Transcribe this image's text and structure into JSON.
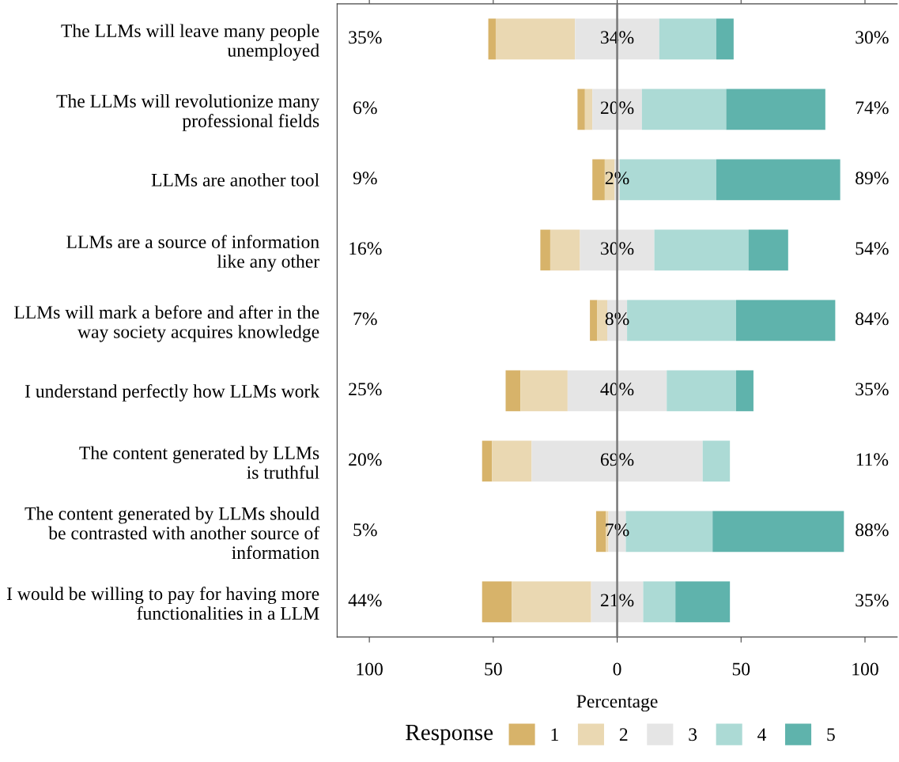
{
  "chart_data": {
    "type": "bar",
    "orientation": "horizontal",
    "xlabel": "Percentage",
    "legend_title": "Response",
    "legend": "bottom",
    "categories": [
      "The LLMs will leave many people\nunemployed",
      "The LLMs will revolutionize many\nprofessional fields",
      "LLMs are another tool",
      "LLMs are a source of information\nlike any other",
      "LLMs will mark a before and after in the\nway society acquires knowledge",
      "I understand perfectly how LLMs work",
      "The content generated by LLMs\nis truthful",
      "The content generated by LLMs should\nbe contrasted with another source of\ninformation",
      "I would be willing to pay for having more\nfunctionalities in a LLM"
    ],
    "series": [
      {
        "name": "1",
        "color": "#d7b36a",
        "values": [
          3,
          3,
          5,
          4,
          3,
          6,
          4,
          4,
          12
        ],
        "base": [
          -52,
          -16,
          -10,
          -31,
          -11,
          -45,
          -54.5,
          -8.5,
          -54.5
        ]
      },
      {
        "name": "2",
        "color": "#ead8b2",
        "values": [
          32,
          3,
          4,
          12,
          4,
          19,
          16,
          1,
          32
        ],
        "base": [
          -49,
          -13,
          -5,
          -27,
          -8,
          -39,
          -50.5,
          -4.5,
          -42.5
        ]
      },
      {
        "name": "3",
        "color": "#e5e5e5",
        "values": [
          34,
          20,
          2,
          30,
          8,
          40,
          69,
          7,
          21
        ],
        "base": [
          -17,
          -10,
          -1,
          -15,
          -4,
          -20,
          -34.5,
          -3.5,
          -10.5
        ],
        "value_labels": [
          "34%",
          "20%",
          "2%",
          "30%",
          "8%",
          "40%",
          "69%",
          "7%",
          "21%"
        ]
      },
      {
        "name": "4",
        "color": "#acdad5",
        "values": [
          23,
          34,
          39,
          38,
          44,
          28,
          11,
          35,
          13
        ],
        "base": [
          17,
          10,
          1,
          15,
          4,
          20,
          34.5,
          3.5,
          10.5
        ]
      },
      {
        "name": "5",
        "color": "#5fb3ac",
        "values": [
          7,
          40,
          50,
          16,
          40,
          7,
          null,
          53,
          22
        ],
        "base": [
          40,
          44,
          40,
          53,
          48,
          48,
          null,
          38.5,
          23.5
        ]
      }
    ],
    "xlim": [
      -113,
      113
    ],
    "xticks": [
      {
        "value": -100,
        "label": "100"
      },
      {
        "value": -50,
        "label": "50"
      },
      0,
      50,
      100
    ],
    "ref_lines": [
      {
        "axis": "x",
        "value": 0,
        "color": "#777777"
      }
    ],
    "grid": false,
    "annotations": [
      "35%",
      "6%",
      "9%",
      "16%",
      "7%",
      "25%",
      "20%",
      "5%",
      "44%",
      "30%",
      "74%",
      "89%",
      "54%",
      "84%",
      "35%",
      "11%",
      "88%",
      "35%"
    ]
  }
}
